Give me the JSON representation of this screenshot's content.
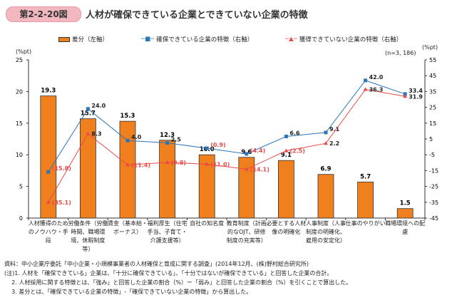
{
  "header": {
    "badge": "第2-2-20図",
    "title": "人材が確保できている企業とできていない企業の特徴"
  },
  "chart_data": {
    "type": "bar+line",
    "title": "人材が確保できている企業とできていない企業の特徴",
    "n_label": "(n=3, 186)",
    "left_axis": {
      "label": "(%pt)",
      "range": [
        0,
        25
      ],
      "ticks": [
        0,
        5,
        10,
        15,
        20,
        25
      ]
    },
    "right_axis": {
      "label": "(%pt)",
      "range": [
        -45,
        55
      ],
      "ticks": [
        -45,
        -35,
        -25,
        -15,
        -5,
        5,
        15,
        25,
        35,
        45,
        55
      ]
    },
    "categories": [
      "人材獲得のためのノウハウ・手段",
      "労働条件（労働時間、職場環境、休暇制度等）",
      "賃金（基本給・ボーナス）",
      "福利厚生（住宅手当、子育て・介護支援等）",
      "自社の知名度",
      "教育制度（計画的なOJT、研修制度の充実等）",
      "必要とする人材像の明確化",
      "人事制度（人事制度の明確化、雇用の安定化）",
      "仕事のやりがい",
      "職場環境への配慮"
    ],
    "series": [
      {
        "name": "差分（左軸）",
        "type": "bar",
        "axis": "left",
        "color": "#f07f1e",
        "values": [
          19.3,
          15.7,
          15.3,
          12.3,
          10.0,
          9.6,
          9.1,
          6.9,
          5.7,
          1.5
        ],
        "labels": [
          "19.3",
          "15.7",
          "15.3",
          "12.3",
          "10.0",
          "9.6",
          "9.1",
          "6.9",
          "5.7",
          "1.5"
        ]
      },
      {
        "name": "確保できている企業の特徴（右軸）",
        "type": "line",
        "axis": "right",
        "color": "#2e75b6",
        "values": [
          -15.8,
          24.0,
          4.0,
          2.5,
          -0.9,
          -4.4,
          6.6,
          9.1,
          42.0,
          33.4
        ],
        "labels": [
          "(15.8)",
          "24.0",
          "4.0",
          "2.5",
          "(0.9)",
          "(4.4)",
          "6.6",
          "9.1",
          "42.0",
          "33.4"
        ]
      },
      {
        "name": "獲得できていない企業の特徴（右軸）",
        "type": "line",
        "axis": "right",
        "color": "#e8494b",
        "values": [
          -35.1,
          8.3,
          -11.4,
          -9.8,
          -11.0,
          -14.1,
          -2.5,
          2.2,
          36.3,
          31.9
        ],
        "labels": [
          "(35.1)",
          "8.3",
          "(11.4)",
          "(9.8)",
          "(11.0)",
          "(14.1)",
          "(2.5)",
          "2.2",
          "36.3",
          "31.9"
        ]
      }
    ]
  },
  "notes": "資料：中小企業庁委託「中小企業・小規模事業者の人材確保と育成に関する調査」(2014年12月、(株)野村総合研究所)\n(注)1. 人材を「確保できている」企業は、「十分に確保できている」、「十分ではないが確保できている」と回答した企業の合計。\n    2. 人材採用に関する特徴とは、「強み」と回答した企業の割合（%）ー「弱み」と回答した企業の割合（%）を引くことで算出した。\n    3. 差分とは、「確保できている企業の特徴」-「確保できていない企業の特徴」から算出した。"
}
